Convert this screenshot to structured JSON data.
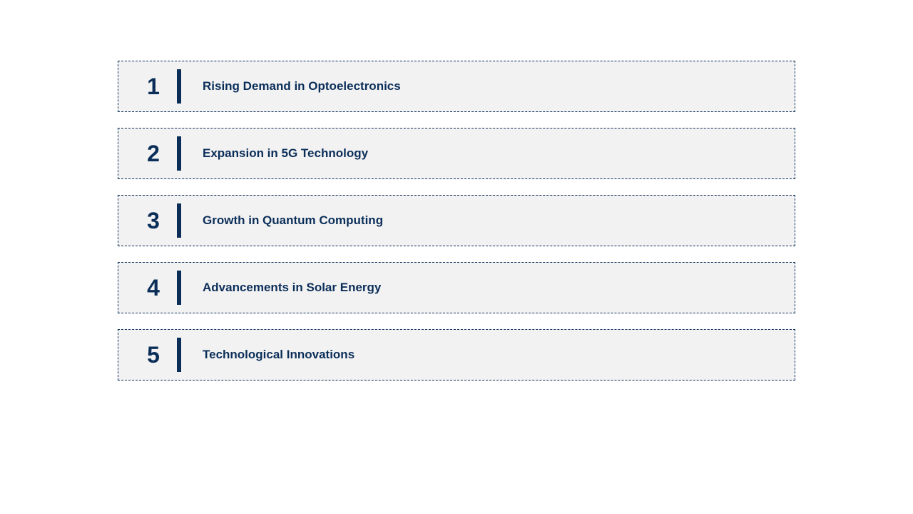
{
  "infographic": {
    "type": "infographic",
    "background_color": "#ffffff",
    "item_background_color": "#f2f2f2",
    "accent_color": "#0b2e59",
    "border_style": "dashed",
    "border_width": 1.5,
    "number_fontsize": 32,
    "label_fontsize": 17,
    "label_fontweight": "bold",
    "divider_width": 6,
    "divider_height": 48,
    "item_height": 72,
    "gap": 22,
    "items": [
      {
        "number": "1",
        "label": "Rising Demand in Optoelectronics"
      },
      {
        "number": "2",
        "label": "Expansion in 5G Technology"
      },
      {
        "number": "3",
        "label": "Growth in Quantum Computing"
      },
      {
        "number": "4",
        "label": "Advancements in Solar Energy"
      },
      {
        "number": "5",
        "label": "Technological Innovations"
      }
    ]
  }
}
